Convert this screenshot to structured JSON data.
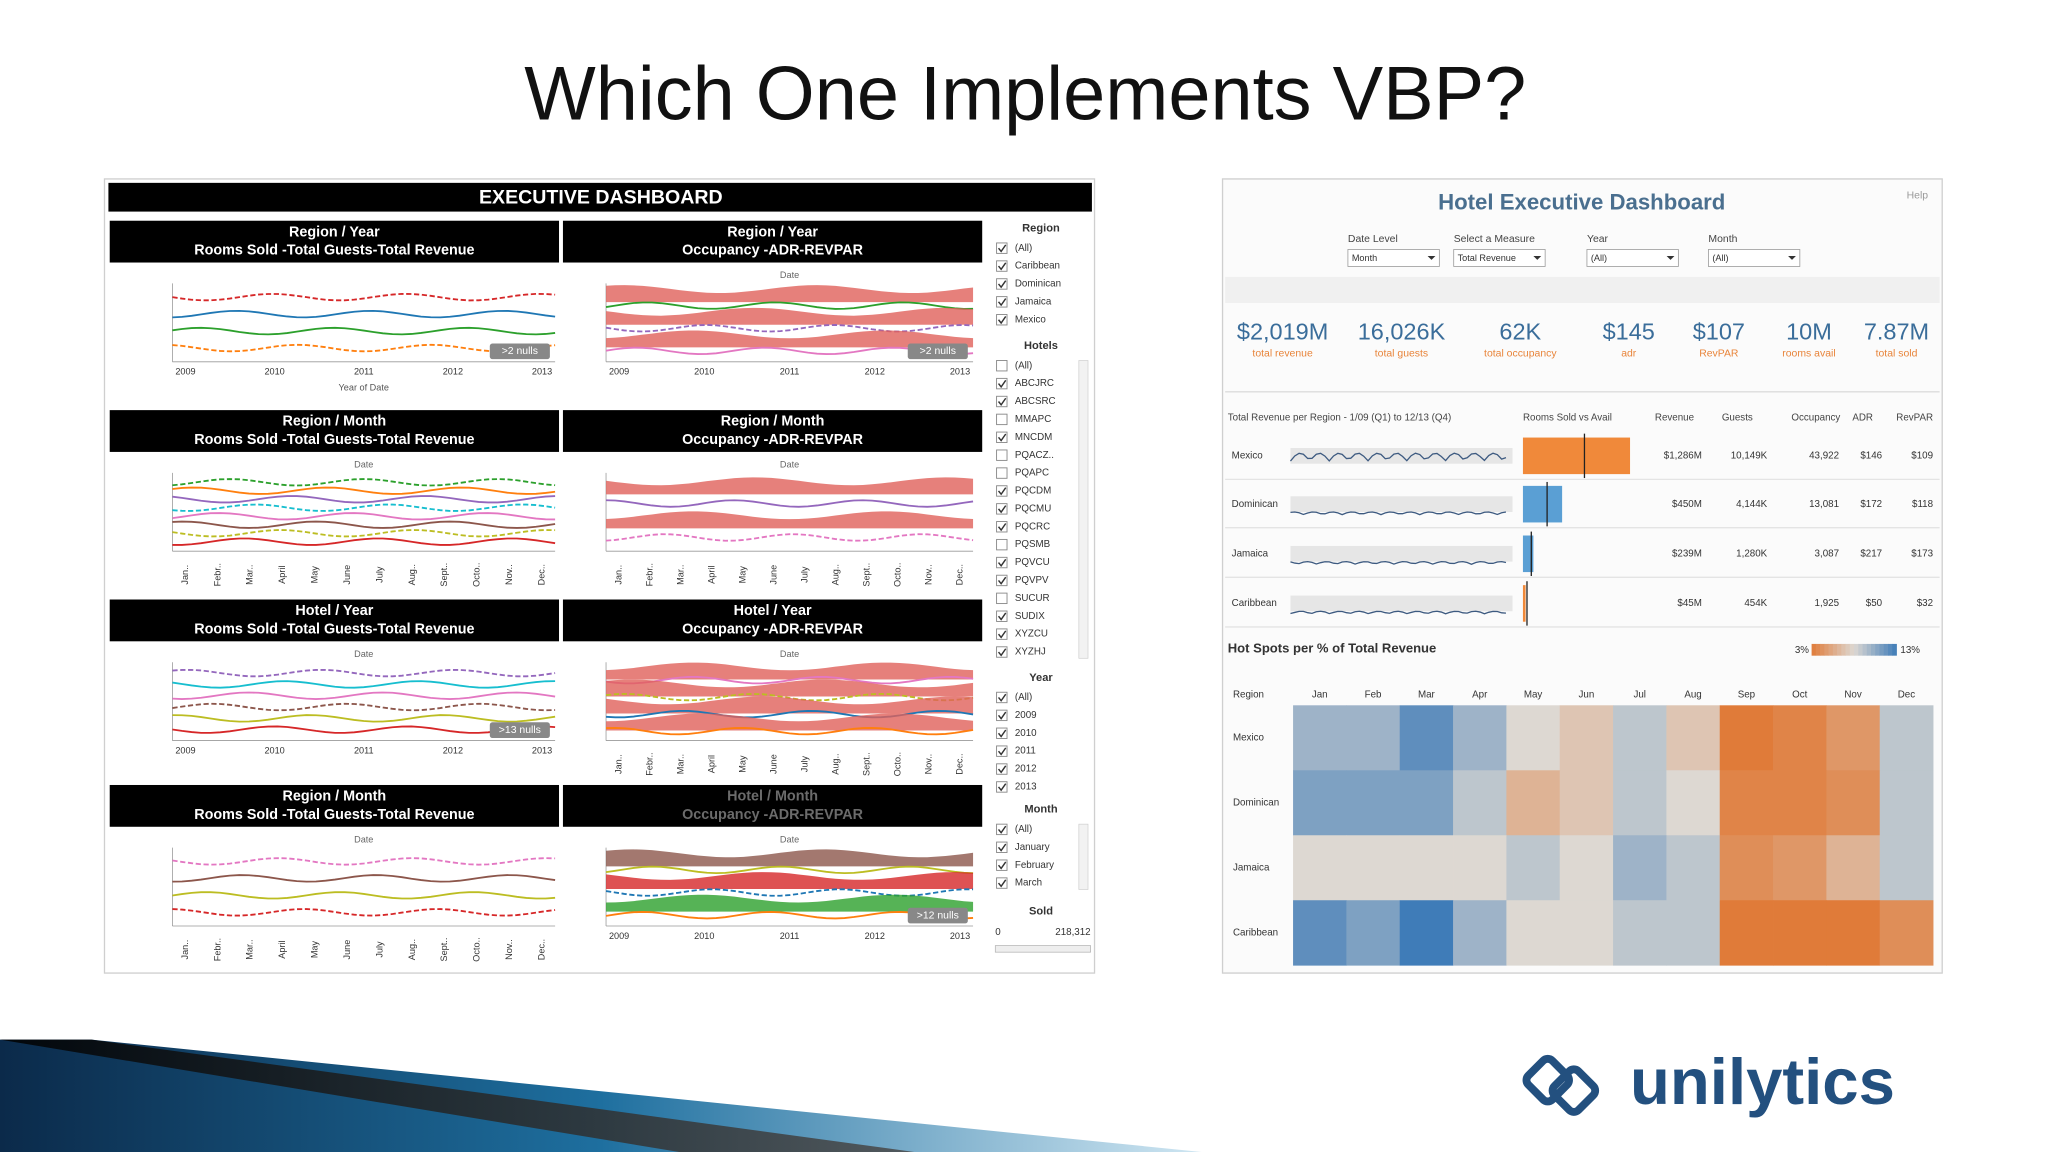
{
  "slide_title": "Which One Implements VBP?",
  "logo": "unilytics",
  "left_dashboard": {
    "title": "EXECUTIVE DASHBOARD",
    "years": [
      "2009",
      "2010",
      "2011",
      "2012",
      "2013"
    ],
    "months": [
      "Jan..",
      "Febr..",
      "Mar..",
      "April",
      "May",
      "June",
      "July",
      "Aug..",
      "Sept..",
      "Octo..",
      "Nov..",
      "Dec.."
    ],
    "date_label": "Date",
    "panels": [
      {
        "title1": "Region / Year",
        "title2": "Rooms Sold -Total Guests-Total Revenue",
        "axis": "years",
        "x_axis_title": "Year of Date",
        "badge": ">2 nulls"
      },
      {
        "title1": "Region / Year",
        "title2": "Occupancy -ADR-REVPAR",
        "axis": "years",
        "badge": ">2 nulls"
      },
      {
        "title1": "Region / Month",
        "title2": "Rooms Sold -Total Guests-Total Revenue",
        "axis": "months"
      },
      {
        "title1": "Region / Month",
        "title2": "Occupancy -ADR-REVPAR",
        "axis": "months"
      },
      {
        "title1": "Hotel  / Year",
        "title2": "Rooms Sold -Total Guests-Total Revenue",
        "axis": "years",
        "badge": ">13 nulls"
      },
      {
        "title1": "Hotel / Year",
        "title2": "Occupancy -ADR-REVPAR",
        "axis": "months"
      },
      {
        "title1": "Region / Month",
        "title2": "Rooms Sold -Total Guests-Total Revenue",
        "axis": "months"
      },
      {
        "title1": "Hotel / Month",
        "title2": "Occupancy -ADR-REVPAR",
        "axis": "years",
        "dimmed": true,
        "badge": ">12 nulls"
      }
    ],
    "filters": [
      {
        "title": "Region",
        "items": [
          {
            "label": "(All)",
            "checked": true
          },
          {
            "label": "Caribbean",
            "checked": true
          },
          {
            "label": "Dominican",
            "checked": true
          },
          {
            "label": "Jamaica",
            "checked": true
          },
          {
            "label": "Mexico",
            "checked": true
          }
        ]
      },
      {
        "title": "Hotels",
        "items": [
          {
            "label": "(All)",
            "checked": false
          },
          {
            "label": "ABCJRC",
            "checked": true
          },
          {
            "label": "ABCSRC",
            "checked": true
          },
          {
            "label": "MMAPC",
            "checked": false
          },
          {
            "label": "MNCDM",
            "checked": true
          },
          {
            "label": "PQACZ..",
            "checked": false
          },
          {
            "label": "PQAPC",
            "checked": false
          },
          {
            "label": "PQCDM",
            "checked": true
          },
          {
            "label": "PQCMU",
            "checked": true
          },
          {
            "label": "PQCRC",
            "checked": true
          },
          {
            "label": "PQSMB",
            "checked": false
          },
          {
            "label": "PQVCU",
            "checked": true
          },
          {
            "label": "PQVPV",
            "checked": true
          },
          {
            "label": "SUCUR",
            "checked": false
          },
          {
            "label": "SUDIX",
            "checked": true
          },
          {
            "label": "XYZCU",
            "checked": true
          },
          {
            "label": "XYZHJ",
            "checked": true
          }
        ]
      },
      {
        "title": "Year",
        "items": [
          {
            "label": "(All)",
            "checked": true
          },
          {
            "label": "2009",
            "checked": true
          },
          {
            "label": "2010",
            "checked": true
          },
          {
            "label": "2011",
            "checked": true
          },
          {
            "label": "2012",
            "checked": true
          },
          {
            "label": "2013",
            "checked": true
          }
        ]
      },
      {
        "title": "Month",
        "items": [
          {
            "label": "(All)",
            "checked": true
          },
          {
            "label": "January",
            "checked": true
          },
          {
            "label": "February",
            "checked": true
          },
          {
            "label": "March",
            "checked": true
          }
        ]
      }
    ],
    "sold": {
      "title": "Sold",
      "min": "0",
      "max": "218,312"
    }
  },
  "right_dashboard": {
    "title": "Hotel Executive Dashboard",
    "help": "Help",
    "controls": [
      {
        "label": "Date Level",
        "value": "Month"
      },
      {
        "label": "Select a Measure",
        "value": "Total Revenue"
      },
      {
        "label": "Year",
        "value": "(All)"
      },
      {
        "label": "Month",
        "value": "(All)"
      }
    ],
    "kpis": [
      {
        "value": "$2,019M",
        "label": "total revenue"
      },
      {
        "value": "16,026K",
        "label": "total guests"
      },
      {
        "value": "62K",
        "label": "total occupancy"
      },
      {
        "value": "$145",
        "label": "adr"
      },
      {
        "value": "$107",
        "label": "RevPAR"
      },
      {
        "value": "10M",
        "label": "rooms avail"
      },
      {
        "value": "7.87M",
        "label": "total sold"
      }
    ],
    "table": {
      "headers": [
        "Total Revenue per Region - 1/09 (Q1) to 12/13 (Q4)",
        "Rooms Sold vs Avail",
        "Revenue",
        "Guests",
        "Occupancy",
        "ADR",
        "RevPAR"
      ],
      "rows": [
        [
          "Mexico",
          "$1,286M",
          "10,149K",
          "43,922",
          "$146",
          "$109"
        ],
        [
          "Dominican",
          "$450M",
          "4,144K",
          "13,081",
          "$172",
          "$118"
        ],
        [
          "Jamaica",
          "$239M",
          "1,280K",
          "3,087",
          "$217",
          "$173"
        ],
        [
          "Caribbean",
          "$45M",
          "454K",
          "1,925",
          "$50",
          "$32"
        ]
      ]
    },
    "heatmap": {
      "title": "Hot Spots per % of Total Revenue",
      "row_header": "Region",
      "scale": [
        {
          "value": 3,
          "label": "3%"
        },
        {
          "value": 13,
          "label": "13%"
        }
      ],
      "low_color": "#e07b39",
      "mid_color": "#ddd8d2",
      "high_color": "#3f7cb8",
      "columns": [
        "Jan",
        "Feb",
        "Mar",
        "Apr",
        "May",
        "Jun",
        "Jul",
        "Aug",
        "Sep",
        "Oct",
        "Nov",
        "Dec"
      ],
      "rows": [
        "Mexico",
        "Dominican",
        "Jamaica",
        "Caribbean"
      ],
      "values": [
        [
          10,
          10,
          12,
          10,
          8,
          7,
          9,
          7,
          3,
          3.5,
          4.5,
          9
        ],
        [
          11,
          11,
          11,
          9,
          6,
          7,
          9,
          8,
          3.5,
          3.5,
          4,
          9
        ],
        [
          8,
          8,
          8,
          8,
          9,
          8,
          10,
          9,
          4,
          4.5,
          6,
          9
        ],
        [
          12,
          11,
          13,
          10,
          8,
          8,
          9,
          9,
          3,
          3,
          3,
          4
        ]
      ]
    }
  }
}
